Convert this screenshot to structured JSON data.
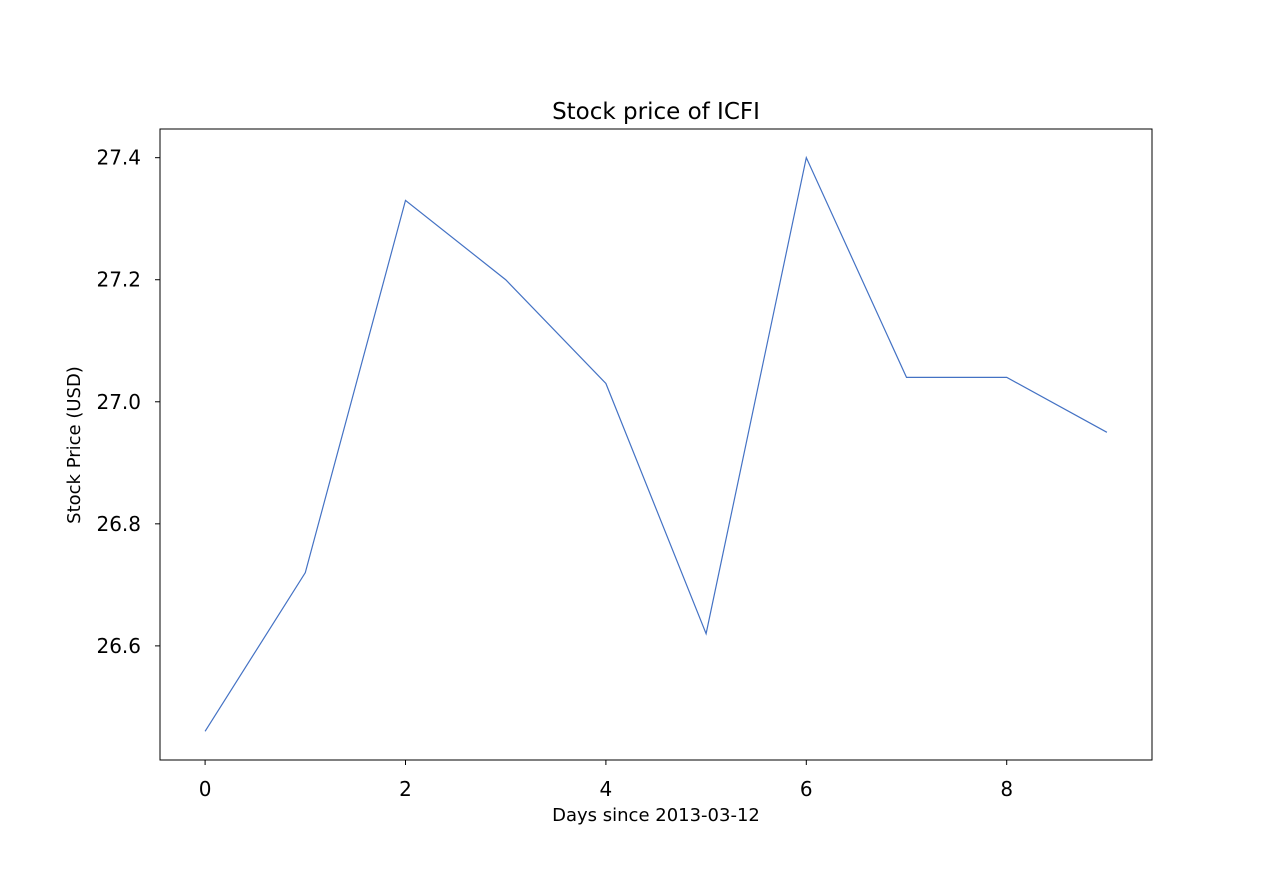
{
  "chart_data": {
    "type": "line",
    "title": "Stock price of ICFI",
    "xlabel": "Days since 2013-03-12",
    "ylabel": "Stock Price (USD)",
    "x": [
      0,
      1,
      2,
      3,
      4,
      5,
      6,
      7,
      8,
      9
    ],
    "series": [
      {
        "values": [
          26.46,
          26.72,
          27.33,
          27.2,
          27.03,
          26.62,
          27.4,
          27.04,
          27.04,
          26.95
        ],
        "color": "#4472c4"
      }
    ],
    "xlim": [
      -0.45,
      9.45
    ],
    "ylim": [
      26.413,
      27.447
    ],
    "xticks": [
      0,
      2,
      4,
      6,
      8
    ],
    "yticks": [
      26.6,
      26.8,
      27.0,
      27.2,
      27.4
    ],
    "xtick_labels": [
      "0",
      "2",
      "4",
      "6",
      "8"
    ],
    "ytick_labels": [
      "26.6",
      "26.8",
      "27.0",
      "27.2",
      "27.4"
    ],
    "grid": false,
    "legend": false
  }
}
